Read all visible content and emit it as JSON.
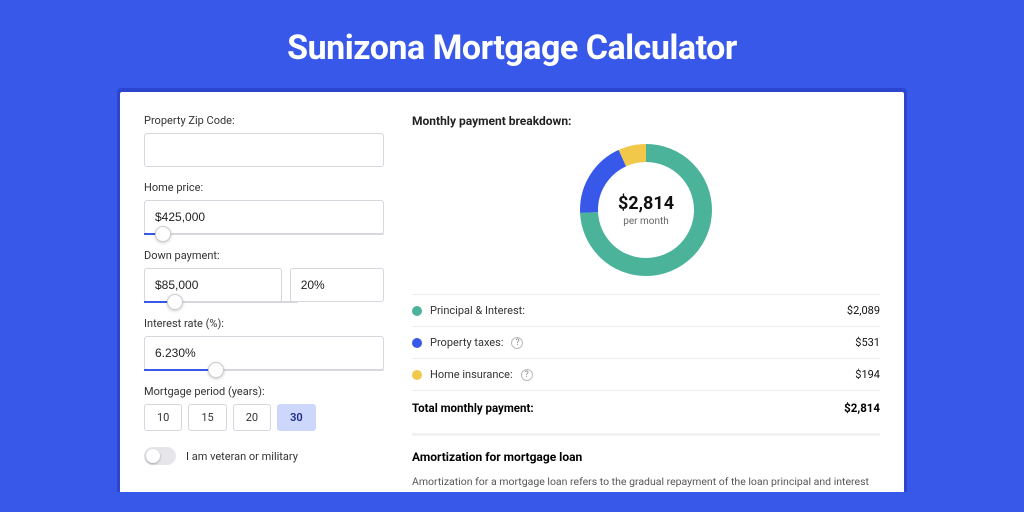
{
  "page": {
    "title": "Sunizona Mortgage Calculator",
    "background_color": "#3858e9",
    "card_shadow_color": "#2b45cf",
    "card_background": "#ffffff"
  },
  "form": {
    "zip": {
      "label": "Property Zip Code:",
      "value": ""
    },
    "home_price": {
      "label": "Home price:",
      "value": "$425,000",
      "slider_pct": 8
    },
    "down_payment": {
      "label": "Down payment:",
      "amount": "$85,000",
      "percent": "20%",
      "slider_pct": 20
    },
    "interest_rate": {
      "label": "Interest rate (%):",
      "value": "6.230%",
      "slider_pct": 30
    },
    "period": {
      "label": "Mortgage period (years):",
      "options": [
        "10",
        "15",
        "20",
        "30"
      ],
      "selected_index": 3
    },
    "veteran": {
      "label": "I am veteran or military",
      "checked": false
    }
  },
  "breakdown": {
    "title": "Monthly payment breakdown:",
    "donut": {
      "amount": "$2,814",
      "sub": "per month",
      "ring_width": 18,
      "radius": 57,
      "segments": [
        {
          "key": "principal_interest",
          "color": "#4bb39a",
          "fraction": 0.742
        },
        {
          "key": "property_taxes",
          "color": "#3858e9",
          "fraction": 0.189
        },
        {
          "key": "home_insurance",
          "color": "#f2c84b",
          "fraction": 0.069
        }
      ]
    },
    "legend": [
      {
        "swatch": "#4bb39a",
        "label": "Principal & Interest:",
        "value": "$2,089",
        "help": false
      },
      {
        "swatch": "#3858e9",
        "label": "Property taxes:",
        "value": "$531",
        "help": true
      },
      {
        "swatch": "#f2c84b",
        "label": "Home insurance:",
        "value": "$194",
        "help": true
      }
    ],
    "total": {
      "label": "Total monthly payment:",
      "value": "$2,814"
    }
  },
  "amortization": {
    "title": "Amortization for mortgage loan",
    "text": "Amortization for a mortgage loan refers to the gradual repayment of the loan principal and interest over a specified"
  }
}
